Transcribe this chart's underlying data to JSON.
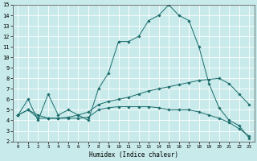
{
  "background_color": "#c8eaea",
  "grid_color": "#ffffff",
  "line_color": "#1a6b6b",
  "xlabel": "Humidex (Indice chaleur)",
  "xlim": [
    -0.5,
    23.5
  ],
  "ylim": [
    2,
    15
  ],
  "xticks": [
    0,
    1,
    2,
    3,
    4,
    5,
    6,
    7,
    8,
    9,
    10,
    11,
    12,
    13,
    14,
    15,
    16,
    17,
    18,
    19,
    20,
    21,
    22,
    23
  ],
  "yticks": [
    2,
    3,
    4,
    5,
    6,
    7,
    8,
    9,
    10,
    11,
    12,
    13,
    14,
    15
  ],
  "lines": [
    {
      "x": [
        0,
        1,
        2,
        3,
        4,
        5,
        6,
        7,
        8,
        9,
        10,
        11,
        12,
        13,
        14,
        15,
        16,
        17,
        18,
        19,
        20,
        21,
        22,
        23
      ],
      "y": [
        4.5,
        6.0,
        4.0,
        6.5,
        4.5,
        5.0,
        4.5,
        4.0,
        7.0,
        8.5,
        11.5,
        11.5,
        12.0,
        13.5,
        14.0,
        15.0,
        14.0,
        13.5,
        11.0,
        7.5,
        5.2,
        4.0,
        3.5,
        2.3
      ]
    },
    {
      "x": [
        0,
        1,
        2,
        3,
        4,
        5,
        6,
        7,
        8,
        9,
        10,
        11,
        12,
        13,
        14,
        15,
        16,
        17,
        18,
        19,
        20,
        21,
        22,
        23
      ],
      "y": [
        4.5,
        5.0,
        4.2,
        4.2,
        4.2,
        4.3,
        4.5,
        4.8,
        5.5,
        5.8,
        6.0,
        6.2,
        6.5,
        6.8,
        7.0,
        7.2,
        7.4,
        7.6,
        7.8,
        7.9,
        8.0,
        7.5,
        6.5,
        5.5
      ]
    },
    {
      "x": [
        0,
        1,
        2,
        3,
        4,
        5,
        6,
        7,
        8,
        9,
        10,
        11,
        12,
        13,
        14,
        15,
        16,
        17,
        18,
        19,
        20,
        21,
        22,
        23
      ],
      "y": [
        4.5,
        5.0,
        4.5,
        4.2,
        4.2,
        4.2,
        4.2,
        4.3,
        5.0,
        5.2,
        5.3,
        5.3,
        5.3,
        5.3,
        5.2,
        5.0,
        5.0,
        5.0,
        4.8,
        4.5,
        4.2,
        3.8,
        3.2,
        2.5
      ]
    }
  ]
}
